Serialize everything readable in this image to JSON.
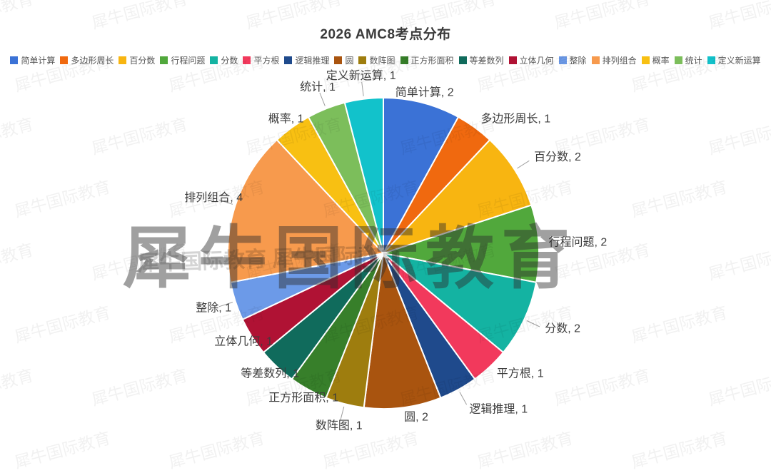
{
  "title": "2026 AMC8考点分布",
  "watermark": {
    "text": "犀牛国际教育",
    "mid_text": "犀牛国际教育 犀牛国际教育"
  },
  "chart_data": {
    "type": "pie",
    "title": "2026 AMC8考点分布",
    "total": 25,
    "start": "12-oclock",
    "direction": "clockwise",
    "legend_position": "top",
    "label_format": "name, value",
    "slices": [
      {
        "label": "简单计算",
        "value": 2,
        "color": "#3b72d6",
        "leader": false,
        "anchor": "middle"
      },
      {
        "label": "多边形周长",
        "value": 1,
        "color": "#f0690f",
        "leader": false,
        "anchor": "start"
      },
      {
        "label": "百分数",
        "value": 2,
        "color": "#f8b511",
        "leader": true,
        "anchor": "start"
      },
      {
        "label": "行程问题",
        "value": 2,
        "color": "#51a83c",
        "leader": false,
        "anchor": "start"
      },
      {
        "label": "分数",
        "value": 2,
        "color": "#14b3a2",
        "leader": true,
        "anchor": "start"
      },
      {
        "label": "平方根",
        "value": 1,
        "color": "#f2395c",
        "leader": false,
        "anchor": "start"
      },
      {
        "label": "逻辑推理",
        "value": 1,
        "color": "#1f4a8c",
        "leader": true,
        "anchor": "start"
      },
      {
        "label": "圆",
        "value": 2,
        "color": "#a9540f",
        "leader": false,
        "anchor": "start"
      },
      {
        "label": "数阵图",
        "value": 1,
        "color": "#9e7d0e",
        "leader": true,
        "anchor": "middle"
      },
      {
        "label": "正方形面积",
        "value": 1,
        "color": "#377f2a",
        "leader": false,
        "anchor": "middle"
      },
      {
        "label": "等差数列",
        "value": 1,
        "color": "#106b5c",
        "leader": false,
        "anchor": "middle"
      },
      {
        "label": "立体几何",
        "value": 1,
        "color": "#b01234",
        "leader": false,
        "anchor": "middle"
      },
      {
        "label": "整除",
        "value": 1,
        "color": "#6c9ae8",
        "leader": true,
        "anchor": "middle"
      },
      {
        "label": "排列组合",
        "value": 4,
        "color": "#f79a4d",
        "leader": true,
        "anchor": "middle"
      },
      {
        "label": "概率",
        "value": 1,
        "color": "#f8c012",
        "leader": false,
        "anchor": "middle"
      },
      {
        "label": "统计",
        "value": 1,
        "color": "#7cbe5b",
        "leader": true,
        "anchor": "middle"
      },
      {
        "label": "定义新运算",
        "value": 1,
        "color": "#12c2cb",
        "leader": true,
        "anchor": "middle"
      }
    ]
  }
}
